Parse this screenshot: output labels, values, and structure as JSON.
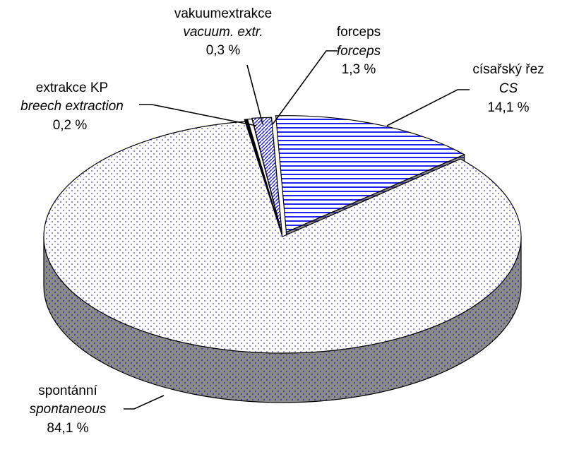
{
  "chart_data": {
    "type": "pie3d",
    "categories": [
      "extrakce KP",
      "vakuumextrakce",
      "forceps",
      "císařský řez",
      "spontánní"
    ],
    "categories_en": [
      "breech extraction",
      "vacuum. extr.",
      "forceps",
      "CS",
      "spontaneous"
    ],
    "values": [
      0.2,
      0.3,
      1.3,
      14.1,
      84.1
    ],
    "value_labels": [
      "0,2 %",
      "0,3 %",
      "1,3 %",
      "14,1 %",
      "84,1 %"
    ]
  }
}
